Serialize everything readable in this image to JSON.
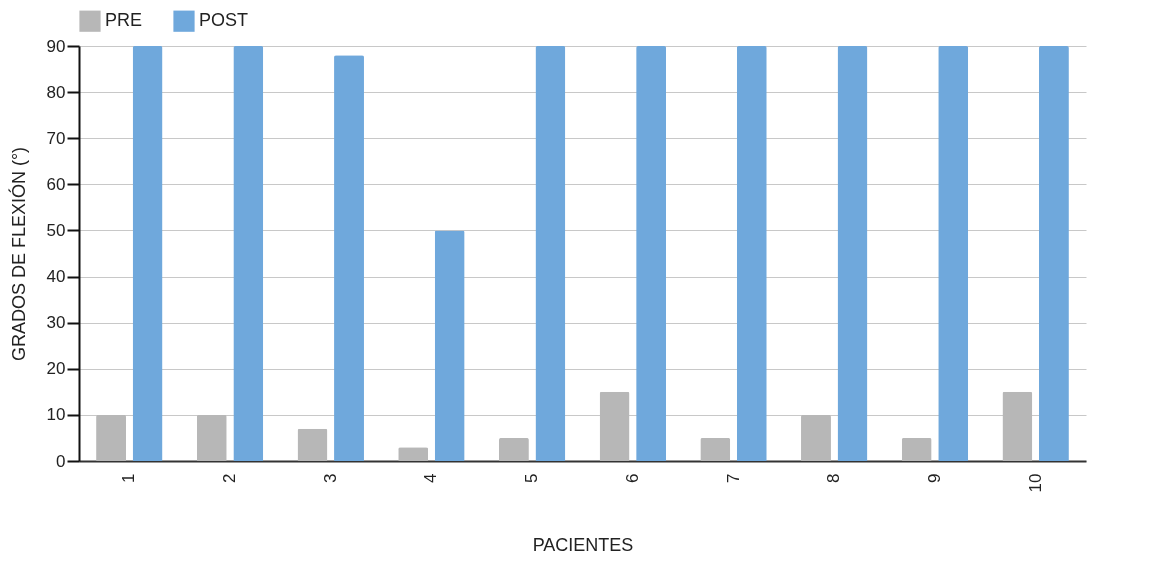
{
  "chart_data": {
    "type": "bar",
    "xlabel": "PACIENTES",
    "ylabel": "GRADOS DE FLEXIÓN (°)",
    "categories": [
      "1",
      "2",
      "3",
      "4",
      "5",
      "6",
      "7",
      "8",
      "9",
      "10"
    ],
    "series": [
      {
        "name": "PRE",
        "color": "#b7b7b7",
        "values": [
          10,
          10,
          7,
          3,
          5,
          15,
          5,
          10,
          5,
          15
        ]
      },
      {
        "name": "POST",
        "color": "#6fa8dc",
        "values": [
          90,
          90,
          88,
          50,
          90,
          90,
          90,
          90,
          90,
          90
        ]
      }
    ],
    "ylim": [
      0,
      90
    ],
    "yticks": [
      0,
      10,
      20,
      30,
      40,
      50,
      60,
      70,
      80,
      90
    ],
    "grid": "y",
    "legend": "top"
  }
}
